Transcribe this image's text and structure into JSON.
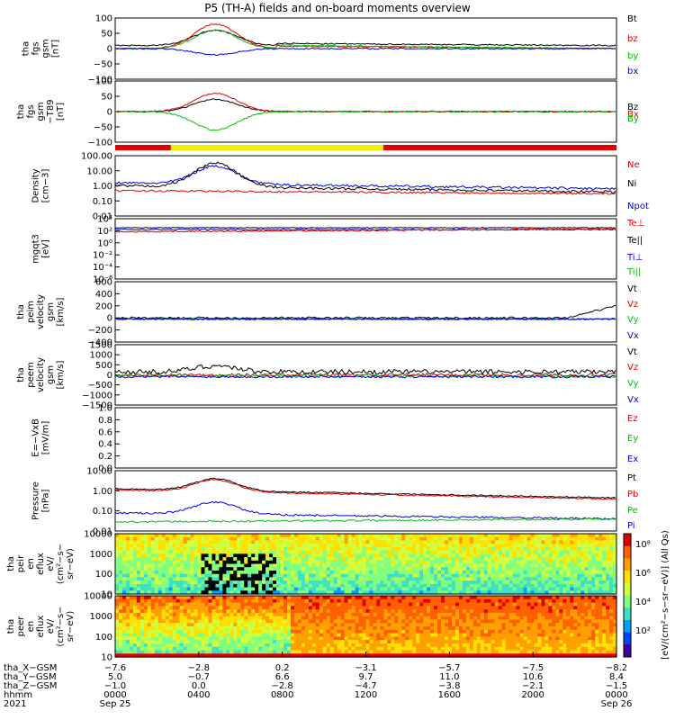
{
  "title": "P5 (TH-A) fields and on-board moments overview",
  "colors": {
    "black": "#000000",
    "red": "#e00000",
    "green": "#00c000",
    "blue": "#0000e0",
    "yellow": "#f0f000"
  },
  "chart_data": [
    {
      "type": "line",
      "id": "p1",
      "ylabel": [
        "tha",
        "fgs",
        "gsm",
        "[nT]"
      ],
      "yticks": [
        "100",
        "50",
        "0",
        "−50",
        "−100"
      ],
      "legend": [
        {
          "name": "Bt",
          "color": "black"
        },
        {
          "name": "bz",
          "color": "red"
        },
        {
          "name": "by",
          "color": "green"
        },
        {
          "name": "bx",
          "color": "blue"
        }
      ]
    },
    {
      "type": "line",
      "id": "p2",
      "ylabel": [
        "tha",
        "fgs",
        "gsm",
        "−T89",
        "[nT]"
      ],
      "yticks": [
        "100",
        "50",
        "0",
        "−50",
        "−100"
      ],
      "legend": [
        {
          "name": "Bz",
          "color": "black"
        },
        {
          "name": "Bx",
          "color": "red"
        },
        {
          "name": "By",
          "color": "green"
        }
      ]
    },
    {
      "type": "bar",
      "id": "bar",
      "segments": [
        {
          "color": "red",
          "from": "00:00",
          "to": "02:40"
        },
        {
          "color": "yellow",
          "from": "02:40",
          "to": "12:50"
        },
        {
          "color": "red",
          "from": "12:50",
          "to": "24:00"
        }
      ]
    },
    {
      "type": "line",
      "id": "p3",
      "ylabel": [
        "Density",
        "[cm−3]"
      ],
      "yticks": [
        "100.00",
        "10.00",
        "1.00",
        "0.10",
        "0.01"
      ],
      "legend": [
        {
          "name": "Ne",
          "color": "red"
        },
        {
          "name": "Ni",
          "color": "black"
        },
        {
          "name": "Npot",
          "color": "blue"
        }
      ]
    },
    {
      "type": "line",
      "id": "p4",
      "ylabel": [
        "mgqt3",
        "[eV]"
      ],
      "yticks": [
        "10⁴",
        "10²",
        "10⁰",
        "10⁻²",
        "10⁻⁴",
        "10⁻⁶"
      ],
      "legend": [
        {
          "name": "Te⊥",
          "color": "red"
        },
        {
          "name": "Te||",
          "color": "black"
        },
        {
          "name": "Ti⊥",
          "color": "blue"
        },
        {
          "name": "Ti||",
          "color": "green"
        }
      ]
    },
    {
      "type": "line",
      "id": "p5",
      "ylabel": [
        "tha",
        "peim",
        "velocity",
        "gsm",
        "[km/s]"
      ],
      "yticks": [
        "600",
        "400",
        "200",
        "0",
        "−200",
        "−400"
      ],
      "legend": [
        {
          "name": "Vt",
          "color": "black"
        },
        {
          "name": "Vz",
          "color": "red"
        },
        {
          "name": "Vy",
          "color": "green"
        },
        {
          "name": "Vx",
          "color": "blue"
        }
      ]
    },
    {
      "type": "line",
      "id": "p6",
      "ylabel": [
        "tha",
        "peem",
        "velocity",
        "gsm",
        "[km/s]"
      ],
      "yticks": [
        "1500",
        "1000",
        "500",
        "0",
        "−500",
        "−1000",
        "−1500"
      ],
      "legend": [
        {
          "name": "Vt",
          "color": "black"
        },
        {
          "name": "Vz",
          "color": "red"
        },
        {
          "name": "Vy",
          "color": "green"
        },
        {
          "name": "Vx",
          "color": "blue"
        }
      ]
    },
    {
      "type": "line",
      "id": "p7",
      "ylabel": [
        "E=−VxB",
        "[mV/m]"
      ],
      "yticks": [
        "1.0",
        "0.8",
        "0.6",
        "0.4",
        "0.2",
        "0.0"
      ],
      "legend": [
        {
          "name": "Ez",
          "color": "red"
        },
        {
          "name": "Ey",
          "color": "green"
        },
        {
          "name": "Ex",
          "color": "blue"
        }
      ]
    },
    {
      "type": "line",
      "id": "p8",
      "ylabel": [
        "Pressure",
        "[nPa]"
      ],
      "yticks": [
        "10.00",
        "1.00",
        "0.10",
        "0.01"
      ],
      "legend": [
        {
          "name": "Pt",
          "color": "black"
        },
        {
          "name": "Pb",
          "color": "red"
        },
        {
          "name": "Pe",
          "color": "green"
        },
        {
          "name": "Pi",
          "color": "blue"
        }
      ]
    },
    {
      "type": "heatmap",
      "id": "s1",
      "ylabel": [
        "tha",
        "peir",
        "en",
        "eflux",
        "eV/",
        "(cm²−s−",
        "sr−eV)"
      ],
      "yticks": [
        "10000",
        "1000",
        "100",
        "10"
      ]
    },
    {
      "type": "heatmap",
      "id": "s2",
      "ylabel": [
        "tha",
        "peer",
        "en",
        "eflux",
        "eV/",
        "(cm²−s−",
        "sr−eV)"
      ],
      "yticks": [
        "10000",
        "1000",
        "100",
        "10"
      ]
    }
  ],
  "colorbar": {
    "ticks": [
      "10⁸",
      "10⁶",
      "10⁴",
      "10²"
    ],
    "label": "[eV/(cm²−s−sr−eV)] (All Qs)"
  },
  "xaxis": {
    "row_labels": [
      "tha_X−GSM",
      "tha_Y−GSM",
      "tha_Z−GSM",
      "hhmm",
      "2021"
    ],
    "ticks": [
      {
        "x": "−7.6",
        "y": "5.0",
        "z": "−1.0",
        "t": "0000",
        "d": "Sep 25"
      },
      {
        "x": "−2.8",
        "y": "−0.7",
        "z": "0.0",
        "t": "0400",
        "d": ""
      },
      {
        "x": "0.2",
        "y": "6.6",
        "z": "−2.8",
        "t": "0800",
        "d": ""
      },
      {
        "x": "−3.1",
        "y": "9.7",
        "z": "−4.7",
        "t": "1200",
        "d": ""
      },
      {
        "x": "−5.7",
        "y": "11.0",
        "z": "−3.8",
        "t": "1600",
        "d": ""
      },
      {
        "x": "−7.5",
        "y": "10.6",
        "z": "−2.1",
        "t": "2000",
        "d": ""
      },
      {
        "x": "−8.2",
        "y": "8.4",
        "z": "−1.5",
        "t": "0000",
        "d": "Sep 26"
      }
    ]
  }
}
